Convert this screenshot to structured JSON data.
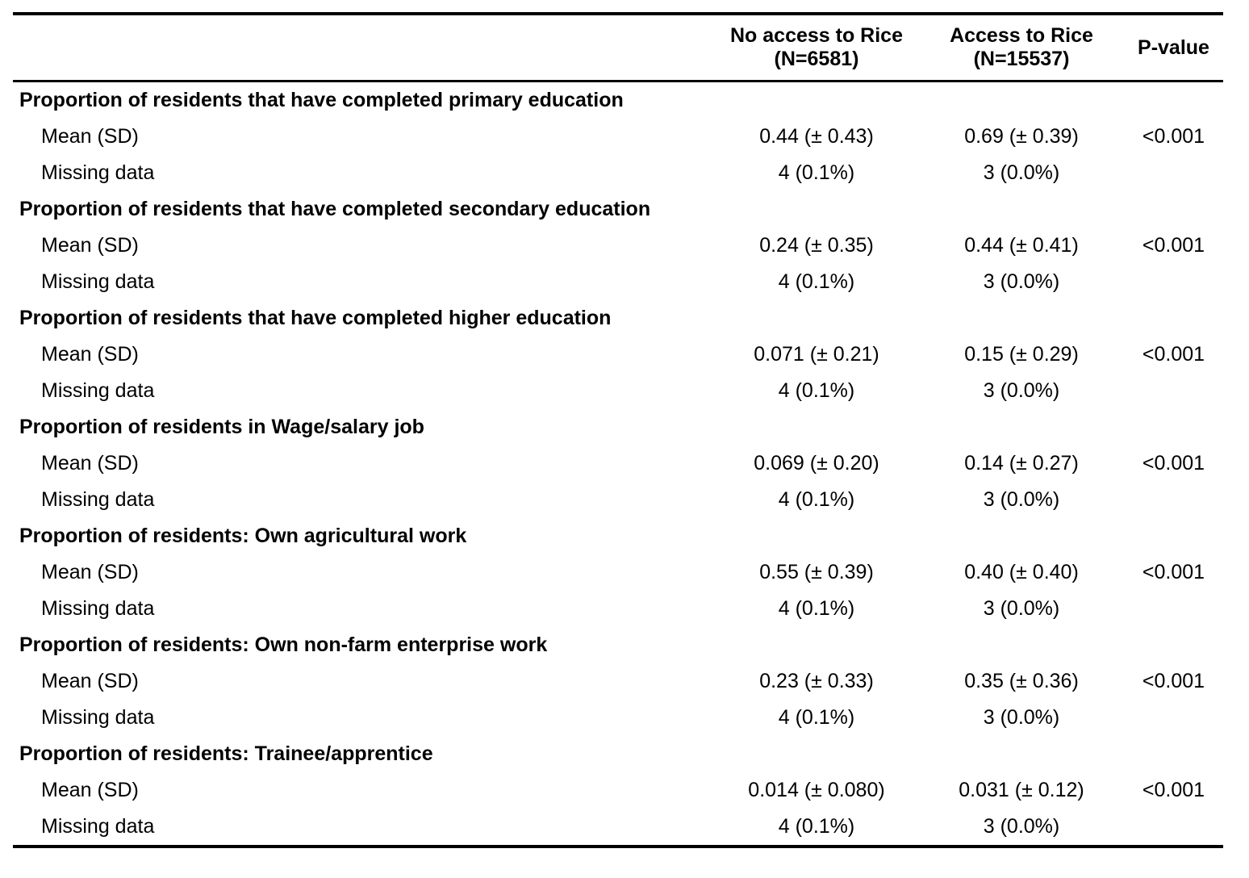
{
  "header": {
    "col1_line1": "No access to Rice",
    "col1_line2": "(N=6581)",
    "col2_line1": "Access to Rice",
    "col2_line2": "(N=15537)",
    "col3": "P-value"
  },
  "groups": [
    {
      "label": "Proportion of residents that have completed primary education",
      "mean": {
        "label": "Mean (SD)",
        "no_access": "0.44 (± 0.43)",
        "access": "0.69 (± 0.39)",
        "p": "<0.001"
      },
      "missing": {
        "label": "Missing data",
        "no_access": "4 (0.1%)",
        "access": "3 (0.0%)",
        "p": ""
      }
    },
    {
      "label": "Proportion of residents that have completed secondary education",
      "mean": {
        "label": "Mean (SD)",
        "no_access": "0.24 (± 0.35)",
        "access": "0.44 (± 0.41)",
        "p": "<0.001"
      },
      "missing": {
        "label": "Missing data",
        "no_access": "4 (0.1%)",
        "access": "3 (0.0%)",
        "p": ""
      }
    },
    {
      "label": "Proportion of residents that have completed higher education",
      "mean": {
        "label": "Mean (SD)",
        "no_access": "0.071 (± 0.21)",
        "access": "0.15 (± 0.29)",
        "p": "<0.001"
      },
      "missing": {
        "label": "Missing data",
        "no_access": "4 (0.1%)",
        "access": "3 (0.0%)",
        "p": ""
      }
    },
    {
      "label": "Proportion of residents in Wage/salary job",
      "mean": {
        "label": "Mean (SD)",
        "no_access": "0.069 (± 0.20)",
        "access": "0.14 (± 0.27)",
        "p": "<0.001"
      },
      "missing": {
        "label": "Missing data",
        "no_access": "4 (0.1%)",
        "access": "3 (0.0%)",
        "p": ""
      }
    },
    {
      "label": "Proportion of residents: Own agricultural work",
      "mean": {
        "label": "Mean (SD)",
        "no_access": "0.55 (± 0.39)",
        "access": "0.40 (± 0.40)",
        "p": "<0.001"
      },
      "missing": {
        "label": "Missing data",
        "no_access": "4 (0.1%)",
        "access": "3 (0.0%)",
        "p": ""
      }
    },
    {
      "label": "Proportion of residents: Own non-farm enterprise work",
      "mean": {
        "label": "Mean (SD)",
        "no_access": "0.23 (± 0.33)",
        "access": "0.35 (± 0.36)",
        "p": "<0.001"
      },
      "missing": {
        "label": "Missing data",
        "no_access": "4 (0.1%)",
        "access": "3 (0.0%)",
        "p": ""
      }
    },
    {
      "label": "Proportion of residents: Trainee/apprentice",
      "mean": {
        "label": "Mean (SD)",
        "no_access": "0.014 (± 0.080)",
        "access": "0.031 (± 0.12)",
        "p": "<0.001"
      },
      "missing": {
        "label": "Missing data",
        "no_access": "4 (0.1%)",
        "access": "3 (0.0%)",
        "p": ""
      }
    }
  ]
}
